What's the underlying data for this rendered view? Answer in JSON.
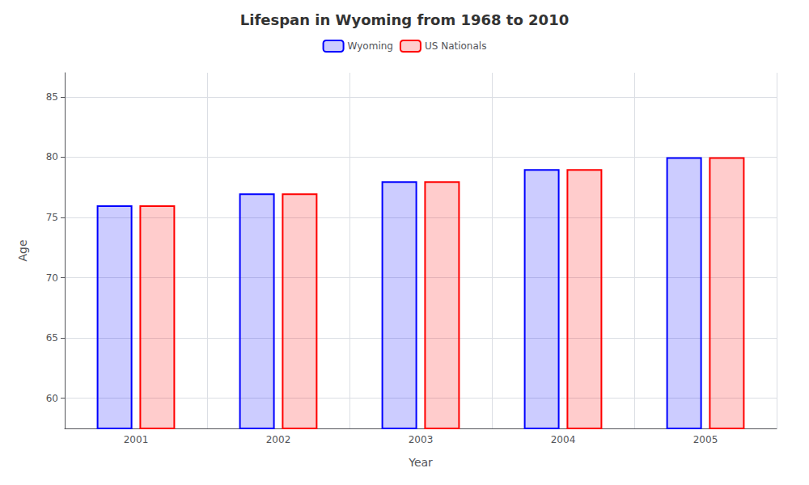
{
  "chart_data": {
    "type": "bar",
    "title": "Lifespan in Wyoming from 1968 to 2010",
    "x_label": "Year",
    "y_label": "Age",
    "categories": [
      "2001",
      "2002",
      "2003",
      "2004",
      "2005"
    ],
    "series": [
      {
        "name": "Wyoming",
        "color": "#0000ff",
        "values": [
          76,
          77,
          78,
          79,
          80
        ]
      },
      {
        "name": "US Nationals",
        "color": "#ff0000",
        "values": [
          76,
          77,
          78,
          79,
          80
        ]
      }
    ],
    "ylim": [
      57.5,
      87
    ],
    "yticks": [
      60,
      65,
      70,
      75,
      80,
      85
    ],
    "grid": true,
    "legend": "top"
  }
}
